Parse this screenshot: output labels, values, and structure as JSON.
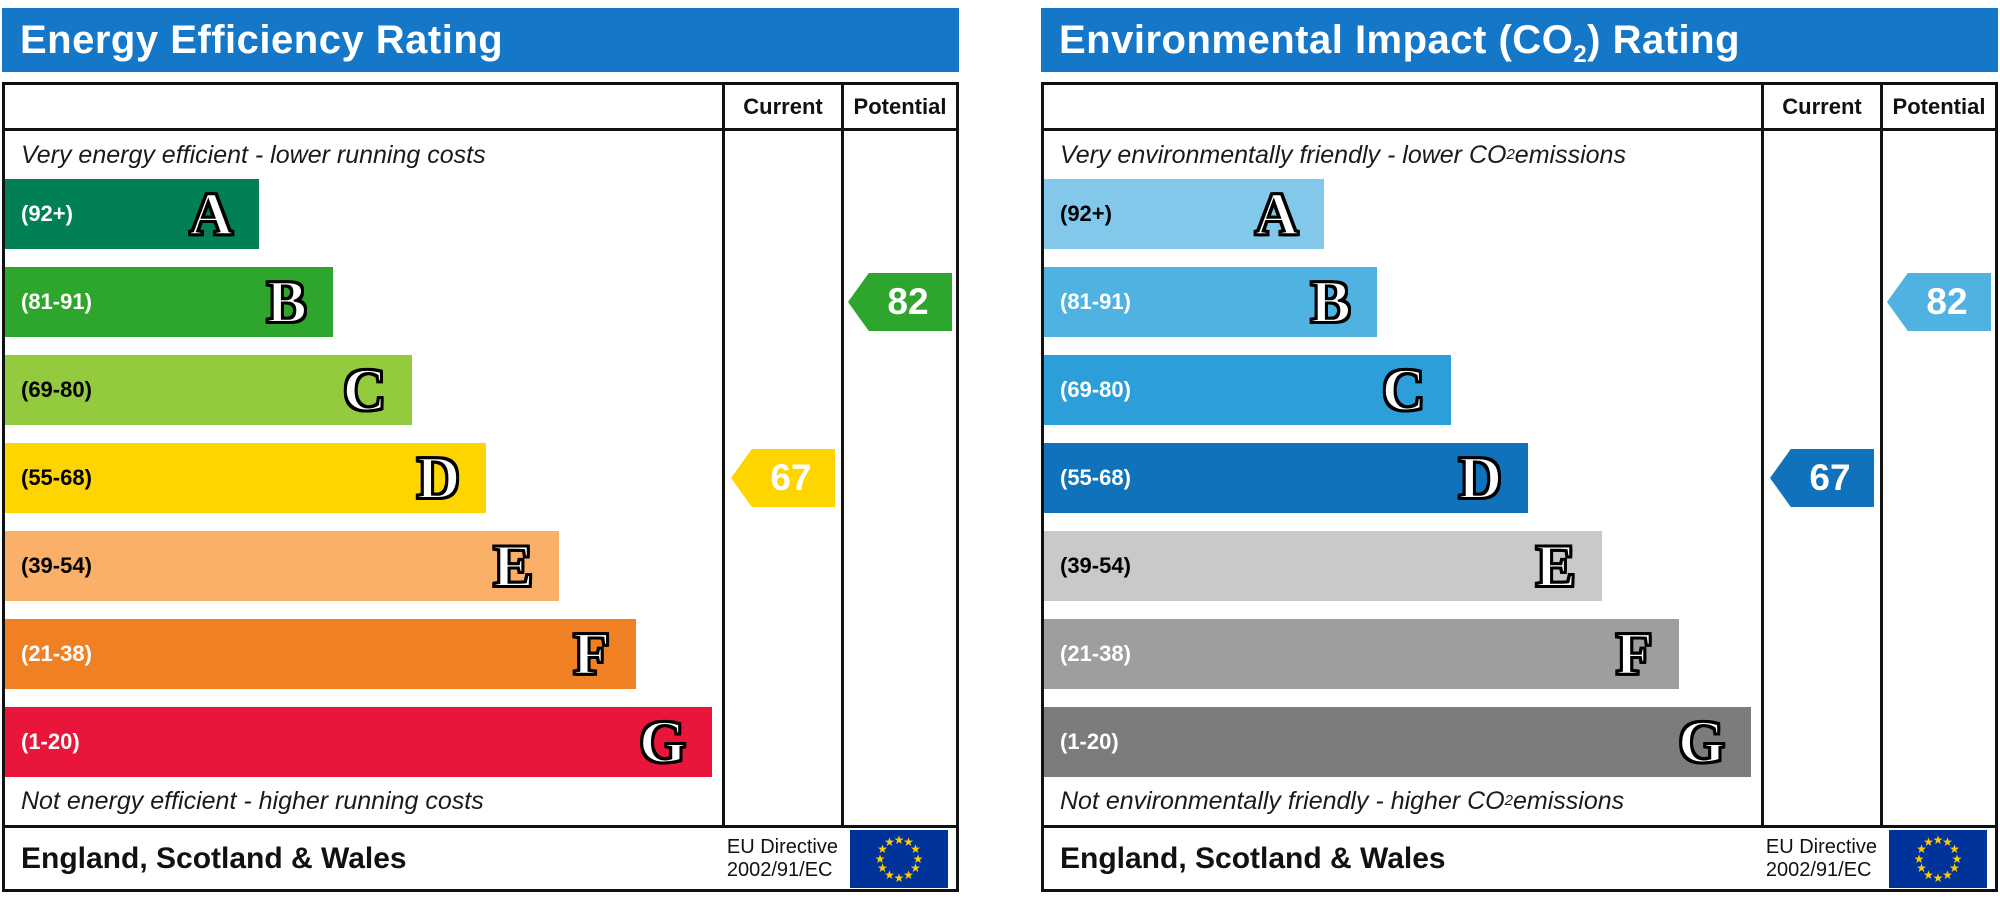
{
  "colors": {
    "banner_bg": "#1577c8",
    "banner_text": "#ffffff",
    "border": "#111111",
    "flag_bg": "#003399",
    "flag_stars": "#ffcc00"
  },
  "chart_data": [
    {
      "type": "bar",
      "title": "Energy Efficiency Rating",
      "title_parts": {
        "pre": "Energy Efficiency Rating",
        "sub": "",
        "post": ""
      },
      "columns": {
        "current": "Current",
        "potential": "Potential"
      },
      "top_note": {
        "pre": "Very energy efficient - lower running costs",
        "sub": "",
        "post": ""
      },
      "bottom_note": {
        "pre": "Not energy efficient - higher running costs",
        "sub": "",
        "post": ""
      },
      "bands": [
        {
          "letter": "A",
          "range_label": "(92+)",
          "range_min": 92,
          "range_max": 100,
          "color": "#008054",
          "range_text_color": "#ffffff",
          "width_pct": 35.4
        },
        {
          "letter": "B",
          "range_label": "(81-91)",
          "range_min": 81,
          "range_max": 91,
          "color": "#2ea52c",
          "range_text_color": "#ffffff",
          "width_pct": 45.7
        },
        {
          "letter": "C",
          "range_label": "(69-80)",
          "range_min": 69,
          "range_max": 80,
          "color": "#94ca3d",
          "range_text_color": "#000000",
          "width_pct": 56.8
        },
        {
          "letter": "D",
          "range_label": "(55-68)",
          "range_min": 55,
          "range_max": 68,
          "color": "#ffd500",
          "range_text_color": "#000000",
          "width_pct": 67.1
        },
        {
          "letter": "E",
          "range_label": "(39-54)",
          "range_min": 39,
          "range_max": 54,
          "color": "#fbb069",
          "range_text_color": "#000000",
          "width_pct": 77.3
        },
        {
          "letter": "F",
          "range_label": "(21-38)",
          "range_min": 21,
          "range_max": 38,
          "color": "#ef8023",
          "range_text_color": "#ffffff",
          "width_pct": 88.0
        },
        {
          "letter": "G",
          "range_label": "(1-20)",
          "range_min": 1,
          "range_max": 20,
          "color": "#e9153b",
          "range_text_color": "#ffffff",
          "width_pct": 98.6
        }
      ],
      "current": {
        "value": 67,
        "band": "D",
        "color": "#ffd500"
      },
      "potential": {
        "value": 82,
        "band": "B",
        "color": "#2ea52c"
      },
      "footer": {
        "region": "England, Scotland & Wales",
        "directive_line1": "EU Directive",
        "directive_line2": "2002/91/EC"
      }
    },
    {
      "type": "bar",
      "title": "Environmental Impact (CO2) Rating",
      "title_parts": {
        "pre": "Environmental Impact (CO",
        "sub": "2",
        "post": ") Rating"
      },
      "columns": {
        "current": "Current",
        "potential": "Potential"
      },
      "top_note": {
        "pre": "Very environmentally friendly - lower CO",
        "sub": "2",
        "post": " emissions"
      },
      "bottom_note": {
        "pre": "Not environmentally friendly - higher CO",
        "sub": "2",
        "post": " emissions"
      },
      "bands": [
        {
          "letter": "A",
          "range_label": "(92+)",
          "range_min": 92,
          "range_max": 100,
          "color": "#82c8ea",
          "range_text_color": "#000000",
          "width_pct": 39.1
        },
        {
          "letter": "B",
          "range_label": "(81-91)",
          "range_min": 81,
          "range_max": 91,
          "color": "#50b2e1",
          "range_text_color": "#ffffff",
          "width_pct": 46.4
        },
        {
          "letter": "C",
          "range_label": "(69-80)",
          "range_min": 69,
          "range_max": 80,
          "color": "#2c9fda",
          "range_text_color": "#ffffff",
          "width_pct": 56.8
        },
        {
          "letter": "D",
          "range_label": "(55-68)",
          "range_min": 55,
          "range_max": 68,
          "color": "#1072ba",
          "range_text_color": "#ffffff",
          "width_pct": 67.5
        },
        {
          "letter": "E",
          "range_label": "(39-54)",
          "range_min": 39,
          "range_max": 54,
          "color": "#c9c9c9",
          "range_text_color": "#000000",
          "width_pct": 77.8
        },
        {
          "letter": "F",
          "range_label": "(21-38)",
          "range_min": 21,
          "range_max": 38,
          "color": "#9e9e9e",
          "range_text_color": "#ffffff",
          "width_pct": 88.5
        },
        {
          "letter": "G",
          "range_label": "(1-20)",
          "range_min": 1,
          "range_max": 20,
          "color": "#7c7c7c",
          "range_text_color": "#ffffff",
          "width_pct": 98.6
        }
      ],
      "current": {
        "value": 67,
        "band": "D",
        "color": "#1072ba"
      },
      "potential": {
        "value": 82,
        "band": "B",
        "color": "#50b2e1"
      },
      "footer": {
        "region": "England, Scotland & Wales",
        "directive_line1": "EU Directive",
        "directive_line2": "2002/91/EC"
      }
    }
  ]
}
